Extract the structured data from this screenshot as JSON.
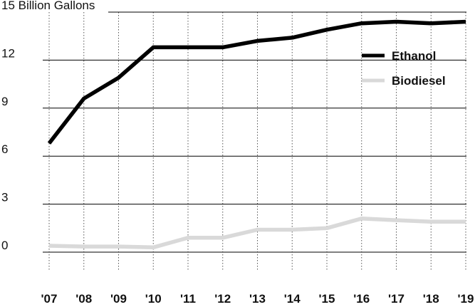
{
  "chart_data": {
    "type": "line",
    "title": "",
    "xlabel": "",
    "ylabel": "",
    "y_unit_label": "15 Billion Gallons",
    "ylim": [
      0,
      15
    ],
    "yticks": [
      0,
      3,
      6,
      9,
      12,
      15
    ],
    "ytick_labels": [
      "0",
      "3",
      "6",
      "9",
      "12",
      "15 Billion Gallons"
    ],
    "categories": [
      "'07",
      "'08",
      "'09",
      "'10",
      "'11",
      "'12",
      "'13",
      "'14",
      "'15",
      "'16",
      "'17",
      "'18",
      "'19"
    ],
    "grid": {
      "horizontal": true,
      "vertical": "dotted"
    },
    "legend_position": "top-right",
    "series": [
      {
        "name": "Ethanol",
        "color": "#000000",
        "values": [
          6.8,
          9.6,
          10.9,
          12.8,
          12.8,
          12.8,
          13.2,
          13.4,
          13.9,
          14.3,
          14.4,
          14.3,
          14.4
        ]
      },
      {
        "name": "Biodiesel",
        "color": "#d9d9d9",
        "values": [
          0.4,
          0.35,
          0.35,
          0.3,
          0.9,
          0.9,
          1.4,
          1.4,
          1.5,
          2.1,
          2.0,
          1.9,
          1.9
        ]
      }
    ]
  }
}
